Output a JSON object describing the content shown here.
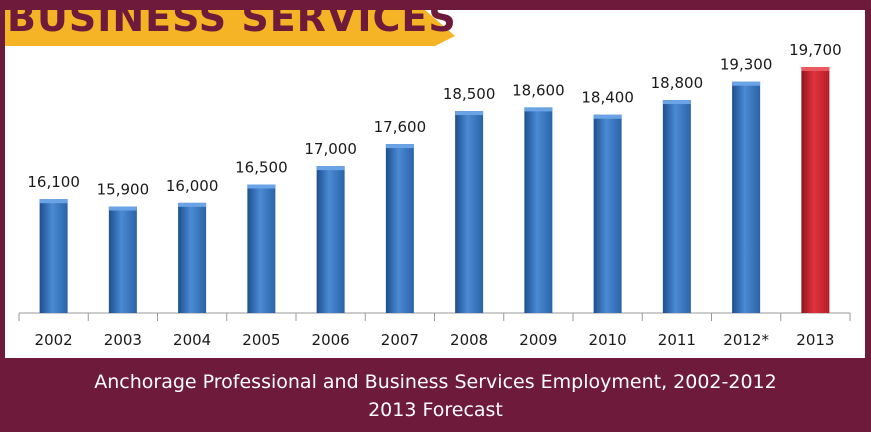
{
  "banner": {
    "title": "BUSINESS SERVICES",
    "color": "#f5b326",
    "text_color": "#6e1a3a"
  },
  "caption": {
    "line1": "Anchorage Professional and Business Services Employment, 2002-2012",
    "line2": "2013 Forecast"
  },
  "colors": {
    "frame": "#6e1a3a",
    "actual_bar": "#2f6db5",
    "forecast_bar": "#c9222b"
  },
  "chart_data": {
    "type": "bar",
    "categories": [
      "2002",
      "2003",
      "2004",
      "2005",
      "2006",
      "2007",
      "2008",
      "2009",
      "2010",
      "2011",
      "2012*",
      "2013"
    ],
    "values": [
      16100,
      15900,
      16000,
      16500,
      17000,
      17600,
      18500,
      18600,
      18400,
      18800,
      19300,
      19700
    ],
    "data_labels": [
      "16,100",
      "15,900",
      "16,000",
      "16,500",
      "17,000",
      "17,600",
      "18,500",
      "18,600",
      "18,400",
      "18,800",
      "19,300",
      "19,700"
    ],
    "highlight": [
      "actual",
      "actual",
      "actual",
      "actual",
      "actual",
      "actual",
      "actual",
      "actual",
      "actual",
      "actual",
      "actual",
      "forecast"
    ],
    "ylim": [
      0,
      20000
    ],
    "grid": false,
    "legend": "none"
  }
}
